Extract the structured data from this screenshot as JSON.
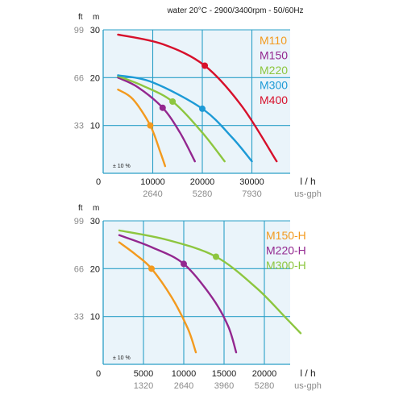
{
  "colors": {
    "background": "#ffffff",
    "plot_bg": "#eaf4fa",
    "grid": "#2a9fc7",
    "axis_text": "#1a1a1a",
    "secondary_text": "#8a8a8a",
    "orange": "#f39a1e",
    "purple": "#93278f",
    "green": "#8dc63f",
    "blue": "#1d9ad6",
    "red": "#d7102b"
  },
  "chart_data": [
    {
      "type": "line",
      "title": "water 20°C - 2900/3400rpm - 50/60Hz",
      "tolerance_note": "± 10 %",
      "xlabel": "l / h",
      "xlabel_secondary": "us-gph",
      "ylabel_ft": "ft",
      "ylabel_m": "m",
      "xlim": [
        0,
        35000
      ],
      "ylim": [
        0,
        30
      ],
      "x_ticks": [
        0,
        10000,
        20000,
        30000
      ],
      "x_ticks_secondary": [
        "2640",
        "5280",
        "7930"
      ],
      "y_ticks_m": [
        10,
        20,
        30
      ],
      "y_ticks_ft": [
        "33",
        "66",
        "99"
      ],
      "grid": true,
      "legend_position": "top-right",
      "series": [
        {
          "name": "M110",
          "color": "#f39a1e",
          "points": [
            [
              3000,
              17.5
            ],
            [
              6000,
              15.5
            ],
            [
              9500,
              10
            ],
            [
              11500,
              4.5
            ],
            [
              12500,
              1.5
            ]
          ],
          "marker": [
            9500,
            10
          ]
        },
        {
          "name": "M150",
          "color": "#93278f",
          "points": [
            [
              3000,
              20
            ],
            [
              7000,
              18
            ],
            [
              12000,
              13.7
            ],
            [
              15500,
              8.5
            ],
            [
              18500,
              2.5
            ]
          ],
          "marker": [
            12000,
            13.7
          ]
        },
        {
          "name": "M220",
          "color": "#8dc63f",
          "points": [
            [
              3000,
              20.3
            ],
            [
              8000,
              18.3
            ],
            [
              14000,
              15
            ],
            [
              20000,
              8.5
            ],
            [
              24500,
              2.5
            ]
          ],
          "marker": [
            14000,
            15
          ]
        },
        {
          "name": "M300",
          "color": "#1d9ad6",
          "points": [
            [
              3000,
              20.5
            ],
            [
              10000,
              19
            ],
            [
              20000,
              13.5
            ],
            [
              26000,
              7.5
            ],
            [
              30000,
              2.5
            ]
          ],
          "marker": [
            20000,
            13.5
          ]
        },
        {
          "name": "M400",
          "color": "#d7102b",
          "points": [
            [
              3000,
              29
            ],
            [
              12000,
              27
            ],
            [
              20500,
              22.5
            ],
            [
              28000,
              14
            ],
            [
              35000,
              2.5
            ]
          ],
          "marker": [
            20500,
            22.5
          ]
        }
      ]
    },
    {
      "type": "line",
      "tolerance_note": "± 10 %",
      "xlabel": "l / h",
      "xlabel_secondary": "us-gph",
      "ylabel_ft": "ft",
      "ylabel_m": "m",
      "xlim": [
        0,
        25000
      ],
      "ylim": [
        0,
        30
      ],
      "x_ticks": [
        0,
        5000,
        10000,
        15000,
        20000
      ],
      "x_ticks_secondary": [
        "1320",
        "2640",
        "3960",
        "5280"
      ],
      "y_ticks_m": [
        10,
        20,
        30
      ],
      "y_ticks_ft": [
        "33",
        "66",
        "99"
      ],
      "grid": true,
      "legend_position": "top-right",
      "series": [
        {
          "name": "M150-H",
          "color": "#f39a1e",
          "points": [
            [
              2000,
              25.5
            ],
            [
              4000,
              23
            ],
            [
              6000,
              20
            ],
            [
              8500,
              14
            ],
            [
              10500,
              7.5
            ],
            [
              11500,
              2.5
            ]
          ],
          "marker": [
            6000,
            20
          ]
        },
        {
          "name": "M220-H",
          "color": "#93278f",
          "points": [
            [
              2000,
              27
            ],
            [
              6000,
              24.5
            ],
            [
              10000,
              21
            ],
            [
              13500,
              14
            ],
            [
              15500,
              8
            ],
            [
              16500,
              2.5
            ]
          ],
          "marker": [
            10000,
            21
          ]
        },
        {
          "name": "M300-H",
          "color": "#8dc63f",
          "points": [
            [
              2000,
              28
            ],
            [
              8000,
              26
            ],
            [
              14000,
              22.5
            ],
            [
              19000,
              16
            ],
            [
              22500,
              10
            ],
            [
              24500,
              6.5
            ]
          ],
          "marker": [
            14000,
            22.5
          ]
        }
      ]
    }
  ]
}
